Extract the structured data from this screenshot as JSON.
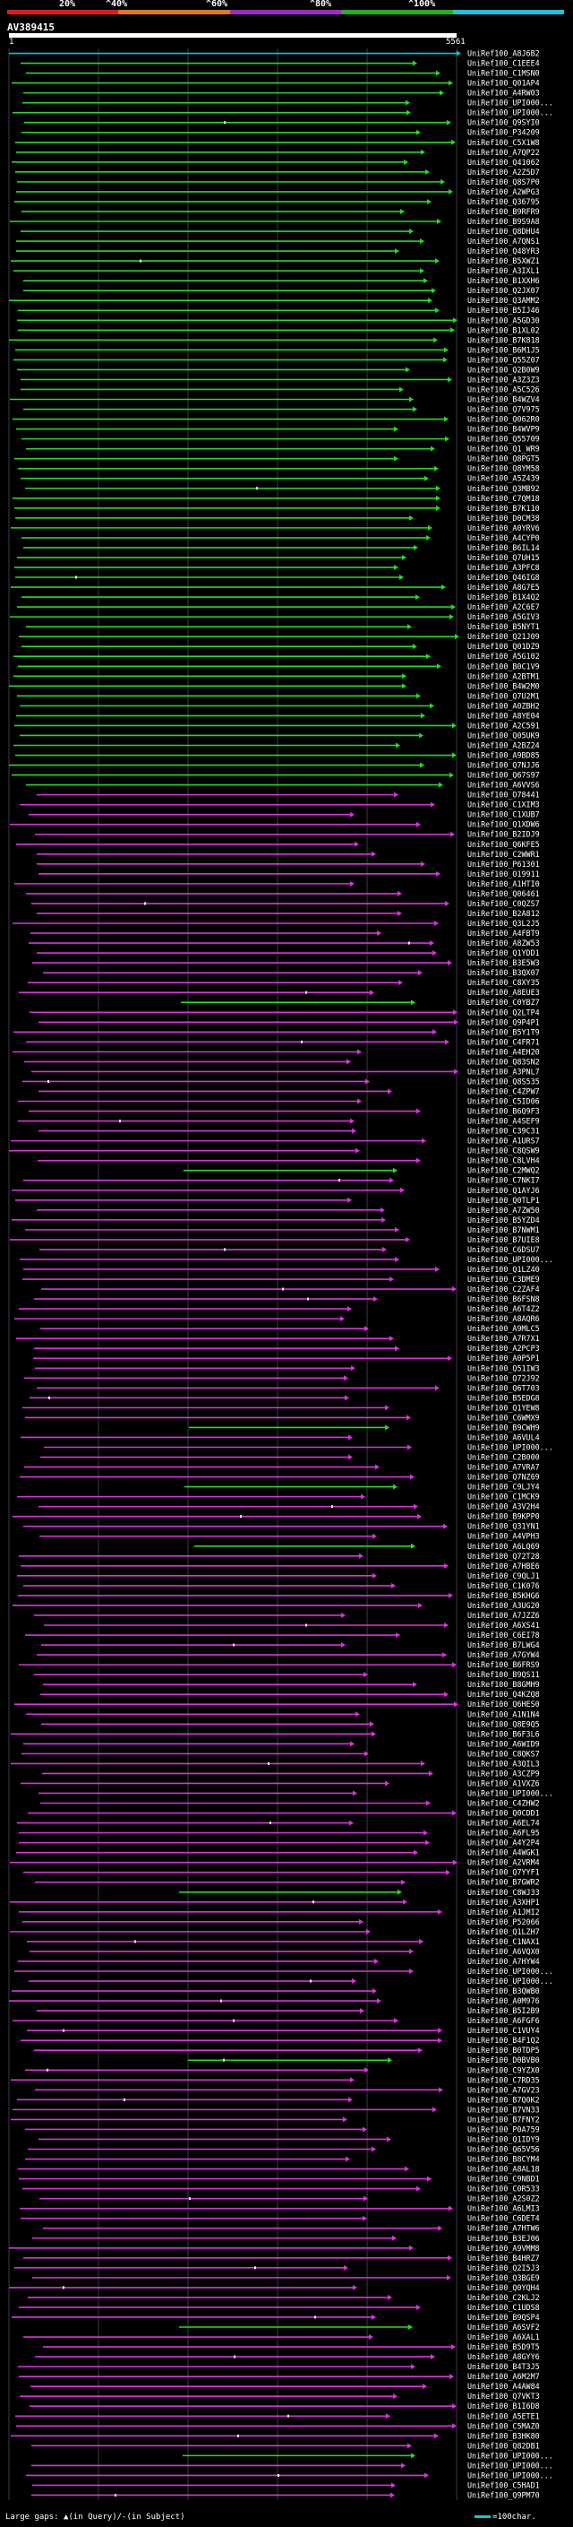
{
  "scale": {
    "labels": [
      "20%",
      "^40%",
      "^60%",
      "^80%",
      "^100%"
    ],
    "colors": [
      "#e01818",
      "#e07818",
      "#9c2cc8",
      "#20b020",
      "#20c0e0"
    ]
  },
  "query": {
    "title": "AV389415",
    "start": "1",
    "end": "5561"
  },
  "colors": {
    "green": "#22dd22",
    "magenta": "#e030e0",
    "cyan": "#00c8e8",
    "grid": "#3a3a4a"
  },
  "hits": [
    "UniRef100_A8J6B2",
    "UniRef100_C1EEE4",
    "UniRef100_C1MSN0",
    "UniRef100_Q01AP4",
    "UniRef100_A4RW03",
    "UniRef100_UPI000...",
    "UniRef100_UPI000...",
    "UniRef100_Q9SYI0",
    "UniRef100_P34209",
    "UniRef100_C5X1W8",
    "UniRef100_A7QP22",
    "UniRef100_Q41062",
    "UniRef100_A2Z5D7",
    "UniRef100_Q8S7P0",
    "UniRef100_A2WPG3",
    "UniRef100_Q36795",
    "UniRef100_B9RFR9",
    "UniRef100_B9S9A8",
    "UniRef100_Q8DHU4",
    "UniRef100_A7QNS1",
    "UniRef100_Q48YR3",
    "UniRef100_B5XWZ1",
    "UniRef100_A3IXL1",
    "UniRef100_B1XXH6",
    "UniRef100_Q2JX07",
    "UniRef100_Q3AMM2",
    "UniRef100_B5IJ46",
    "UniRef100_A5GD30",
    "UniRef100_B1XL02",
    "UniRef100_B7K818",
    "UniRef100_B6M1J5",
    "UniRef100_Q55Z07",
    "UniRef100_Q2B0W9",
    "UniRef100_A3Z3Z3",
    "UniRef100_A5C526",
    "UniRef100_B4WZV4",
    "UniRef100_Q7V975",
    "UniRef100_Q062R0",
    "UniRef100_B4WVP9",
    "UniRef100_Q55709",
    "UniRef100_Q1_WR9",
    "UniRef100_Q8PGT5",
    "UniRef100_Q8YM58",
    "UniRef100_A5Z439",
    "UniRef100_Q3MB92",
    "UniRef100_C7QM18",
    "UniRef100_B7K110",
    "UniRef100_D0CM38",
    "UniRef100_A0YRV6",
    "UniRef100_A4CYP0",
    "UniRef100_B6IL14",
    "UniRef100_Q7UH15",
    "UniRef100_A3PFC8",
    "UniRef100_Q46IG8",
    "UniRef100_A8G7E5",
    "UniRef100_B1X4Q2",
    "UniRef100_A2C6E7",
    "UniRef100_A5GIV3",
    "UniRef100_B5NYT1",
    "UniRef100_Q21J09",
    "UniRef100_Q01DZ9",
    "UniRef100_A5G102",
    "UniRef100_B0C1V9",
    "UniRef100_A2BTM1",
    "UniRef100_B4W2M0",
    "UniRef100_Q7U2M1",
    "UniRef100_A0ZBH2",
    "UniRef100_A8YE04",
    "UniRef100_A2C591",
    "UniRef100_Q05UK9",
    "UniRef100_A2BZ24",
    "UniRef100_A9BD85",
    "UniRef100_Q7NJJ6",
    "UniRef100_Q67S97",
    "UniRef100_A6VVS6",
    "UniRef100_O78441",
    "UniRef100_C1XIM3",
    "UniRef100_C1XUB7",
    "UniRef100_Q1XDW6",
    "UniRef100_B2IDJ9",
    "UniRef100_Q6KFE5",
    "UniRef100_C2WWR1",
    "UniRef100_P61301",
    "UniRef100_O19911",
    "UniRef100_A1HTI0",
    "UniRef100_Q06461",
    "UniRef100_C0QZS7",
    "UniRef100_B2A812",
    "UniRef100_Q3L2J5",
    "UniRef100_A4FBT9",
    "UniRef100_A8ZW53",
    "UniRef100_Q1YDD1",
    "UniRef100_B3E5W3",
    "UniRef100_B3QX07",
    "UniRef100_C8XY35",
    "UniRef100_A8EUE3",
    "UniRef100_C0YBZ7",
    "UniRef100_Q2LTP4",
    "UniRef100_Q9P4P1",
    "UniRef100_B5Y1T9",
    "UniRef100_C4FR71",
    "UniRef100_A4EH20",
    "UniRef100_Q83SN2",
    "UniRef100_A3PNL7",
    "UniRef100_Q8S535",
    "UniRef100_C4ZPW7",
    "UniRef100_C5ID06",
    "UniRef100_B6Q9F3",
    "UniRef100_A4SEF9",
    "UniRef100_C39C31",
    "UniRef100_A1URS7",
    "UniRef100_C8QSW9",
    "UniRef100_C8LVH4",
    "UniRef100_C2MWQ2",
    "UniRef100_C7NKI7",
    "UniRef100_Q1AYJ6",
    "UniRef100_Q0TLP1",
    "UniRef100_A7ZW50",
    "UniRef100_B5YZD4",
    "UniRef100_B7NWM1",
    "UniRef100_B7UIE8",
    "UniRef100_C6DSU7",
    "UniRef100_UPI000...",
    "UniRef100_Q1LZ40",
    "UniRef100_C3DME9",
    "UniRef100_C2ZAF4",
    "UniRef100_B6FSN8",
    "UniRef100_A6T4Z2",
    "UniRef100_A8AQR6",
    "UniRef100_A9MLC5",
    "UniRef100_A7R7X1",
    "UniRef100_A2PCP3",
    "UniRef100_A0P5P1",
    "UniRef100_Q51IW3",
    "UniRef100_Q72J92",
    "UniRef100_Q6T703",
    "UniRef100_B5EDG8",
    "UniRef100_Q1YEW8",
    "UniRef100_C6WMX9",
    "UniRef100_B9CWH9",
    "UniRef100_A6VUL4",
    "UniRef100_UPI000...",
    "UniRef100_C2B000",
    "UniRef100_A7VRA7",
    "UniRef100_Q7NZ69",
    "UniRef100_C9LJY4",
    "UniRef100_C1MCK9",
    "UniRef100_A3V2H4",
    "UniRef100_B9KPP0",
    "UniRef100_Q31YN1",
    "UniRef100_A4VPH3",
    "UniRef100_A6LQ69",
    "UniRef100_Q72T28",
    "UniRef100_A7HBE6",
    "UniRef100_C9QLJ1",
    "UniRef100_C1K076",
    "UniRef100_B5KHG6",
    "UniRef100_A3UG20",
    "UniRef100_A7JZZ6",
    "UniRef100_A6XS41",
    "UniRef100_C6EI78",
    "UniRef100_B7LWG4",
    "UniRef100_A7GYW4",
    "UniRef100_B6FRS9",
    "UniRef100_B9QS11",
    "UniRef100_B8GMH9",
    "UniRef100_Q4KZQ8",
    "UniRef100_Q6HES0",
    "UniRef100_A1N1N4",
    "UniRef100_Q8E9Q5",
    "UniRef100_B6F3L6",
    "UniRef100_A6WID9",
    "UniRef100_C8QKS7",
    "UniRef100_A3QIL3",
    "UniRef100_A3CZP9",
    "UniRef100_A1VXZ6",
    "UniRef100_UPI000...",
    "UniRef100_C4ZHW2",
    "UniRef100_Q0CDD1",
    "UniRef100_A6EL74",
    "UniRef100_A6FL95",
    "UniRef100_A4Y2P4",
    "UniRef100_A4WGK1",
    "UniRef100_A2VRM4",
    "UniRef100_Q7YYF1",
    "UniRef100_B7GWR2",
    "UniRef100_C8WJ33",
    "UniRef100_A3XHP1",
    "UniRef100_A1JMI2",
    "UniRef100_P52066",
    "UniRef100_Q1LZH7",
    "UniRef100_C1NAX1",
    "UniRef100_A6VQX0",
    "UniRef100_A7HYW4",
    "UniRef100_UPI000...",
    "UniRef100_UPI000...",
    "UniRef100_B3QWB0",
    "UniRef100_A0M976",
    "UniRef100_B5I2B9",
    "UniRef100_A6FGF6",
    "UniRef100_C1VUY4",
    "UniRef100_B4F1Q2",
    "UniRef100_B0TDP5",
    "UniRef100_D0BVB0",
    "UniRef100_C9YZX0",
    "UniRef100_C7RD35",
    "UniRef100_A7GV23",
    "UniRef100_B7Q0K2",
    "UniRef100_B7VN33",
    "UniRef100_B7FNY2",
    "UniRef100_P0A759",
    "UniRef100_Q1IDY9",
    "UniRef100_Q65V56",
    "UniRef100_B8CYM4",
    "UniRef100_A8AL18",
    "UniRef100_C9NBD1",
    "UniRef100_C0R533",
    "UniRef100_A2S0Z2",
    "UniRef100_A6LMI3",
    "UniRef100_C6DET4",
    "UniRef100_A7HTW6",
    "UniRef100_B3EJ06",
    "UniRef100_A9VMM8",
    "UniRef100_B4HRZ7",
    "UniRef100_Q2I5J3",
    "UniRef100_Q3BGE9",
    "UniRef100_Q0YQH4",
    "UniRef100_C2KLJ2",
    "UniRef100_C1UDS8",
    "UniRef100_B9QSP4",
    "UniRef100_A6SVF2",
    "UniRef100_A6XAL1",
    "UniRef100_B5D9T5",
    "UniRef100_A8GYY6",
    "UniRef100_B4T3J5",
    "UniRef100_A6M2M7",
    "UniRef100_A4AW84",
    "UniRef100_Q7VKT3",
    "UniRef100_B1I6D8",
    "UniRef100_A5ETE1",
    "UniRef100_C5MAZ0",
    "UniRef100_B3HK80",
    "UniRef100_Q82DB1",
    "UniRef100_UPI000...",
    "UniRef100_UPI000...",
    "UniRef100_UPI000...",
    "UniRef100_C5HAD1",
    "UniRef100_Q9PM70"
  ],
  "legend": {
    "label": "Large gaps:",
    "query_gap": "(in Query)",
    "subject_gap": "/-(in Subject)",
    "scale_label": "=100char."
  }
}
